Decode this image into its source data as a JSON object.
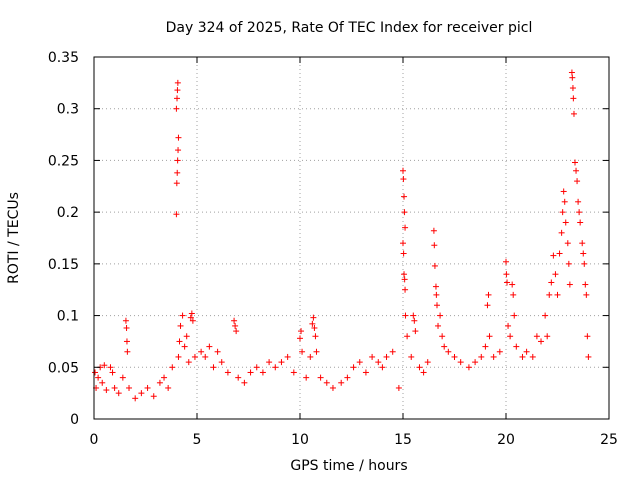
{
  "chart_data": {
    "type": "scatter",
    "title": "Day 324 of 2025, Rate Of TEC Index for receiver picl",
    "xlabel": "GPS time / hours",
    "ylabel": "ROTI / TECUs",
    "xlim": [
      0,
      25
    ],
    "ylim": [
      0,
      0.35
    ],
    "xticks": [
      0,
      5,
      10,
      15,
      20,
      25
    ],
    "xtick_labels": [
      "0",
      "5",
      "10",
      "15",
      "20",
      "25"
    ],
    "yticks": [
      0,
      0.05,
      0.1,
      0.15,
      0.2,
      0.25,
      0.3,
      0.35
    ],
    "ytick_labels": [
      "0",
      "0.05",
      "0.1",
      "0.15",
      "0.2",
      "0.25",
      "0.3",
      "0.35"
    ],
    "grid": true,
    "marker": "+",
    "color": "#ff0000",
    "series": [
      {
        "name": "ROTI",
        "points": [
          [
            0.05,
            0.045
          ],
          [
            0.1,
            0.03
          ],
          [
            0.2,
            0.04
          ],
          [
            0.3,
            0.05
          ],
          [
            0.4,
            0.035
          ],
          [
            0.5,
            0.052
          ],
          [
            0.6,
            0.028
          ],
          [
            0.8,
            0.05
          ],
          [
            0.9,
            0.045
          ],
          [
            1.0,
            0.03
          ],
          [
            1.2,
            0.025
          ],
          [
            1.4,
            0.04
          ],
          [
            1.55,
            0.095
          ],
          [
            1.58,
            0.088
          ],
          [
            1.6,
            0.075
          ],
          [
            1.62,
            0.065
          ],
          [
            1.7,
            0.03
          ],
          [
            2.0,
            0.02
          ],
          [
            2.3,
            0.025
          ],
          [
            2.6,
            0.03
          ],
          [
            2.9,
            0.022
          ],
          [
            3.2,
            0.035
          ],
          [
            3.4,
            0.04
          ],
          [
            3.6,
            0.03
          ],
          [
            3.8,
            0.05
          ],
          [
            4.0,
            0.198
          ],
          [
            4.02,
            0.228
          ],
          [
            4.04,
            0.238
          ],
          [
            4.06,
            0.25
          ],
          [
            4.08,
            0.26
          ],
          [
            4.1,
            0.272
          ],
          [
            4.0,
            0.3
          ],
          [
            4.03,
            0.31
          ],
          [
            4.05,
            0.318
          ],
          [
            4.07,
            0.325
          ],
          [
            4.1,
            0.06
          ],
          [
            4.15,
            0.075
          ],
          [
            4.2,
            0.09
          ],
          [
            4.3,
            0.1
          ],
          [
            4.4,
            0.07
          ],
          [
            4.5,
            0.08
          ],
          [
            4.6,
            0.055
          ],
          [
            4.7,
            0.098
          ],
          [
            4.75,
            0.102
          ],
          [
            4.8,
            0.095
          ],
          [
            4.9,
            0.06
          ],
          [
            5.2,
            0.065
          ],
          [
            5.4,
            0.06
          ],
          [
            5.6,
            0.07
          ],
          [
            5.8,
            0.05
          ],
          [
            6.0,
            0.065
          ],
          [
            6.2,
            0.055
          ],
          [
            6.5,
            0.045
          ],
          [
            6.8,
            0.095
          ],
          [
            6.85,
            0.09
          ],
          [
            6.9,
            0.085
          ],
          [
            7.0,
            0.04
          ],
          [
            7.3,
            0.035
          ],
          [
            7.6,
            0.045
          ],
          [
            7.9,
            0.05
          ],
          [
            8.2,
            0.045
          ],
          [
            8.5,
            0.055
          ],
          [
            8.8,
            0.05
          ],
          [
            9.1,
            0.055
          ],
          [
            9.4,
            0.06
          ],
          [
            9.7,
            0.045
          ],
          [
            10.0,
            0.078
          ],
          [
            10.05,
            0.085
          ],
          [
            10.1,
            0.065
          ],
          [
            10.3,
            0.04
          ],
          [
            10.5,
            0.06
          ],
          [
            10.6,
            0.092
          ],
          [
            10.65,
            0.098
          ],
          [
            10.7,
            0.088
          ],
          [
            10.75,
            0.08
          ],
          [
            10.8,
            0.065
          ],
          [
            11.0,
            0.04
          ],
          [
            11.3,
            0.035
          ],
          [
            11.6,
            0.03
          ],
          [
            12.0,
            0.035
          ],
          [
            12.3,
            0.04
          ],
          [
            12.6,
            0.05
          ],
          [
            12.9,
            0.055
          ],
          [
            13.2,
            0.045
          ],
          [
            13.5,
            0.06
          ],
          [
            13.8,
            0.055
          ],
          [
            14.0,
            0.05
          ],
          [
            14.2,
            0.06
          ],
          [
            14.5,
            0.065
          ],
          [
            14.8,
            0.03
          ],
          [
            15.0,
            0.24
          ],
          [
            15.02,
            0.232
          ],
          [
            15.05,
            0.215
          ],
          [
            15.07,
            0.2
          ],
          [
            15.1,
            0.185
          ],
          [
            15.0,
            0.17
          ],
          [
            15.03,
            0.16
          ],
          [
            15.05,
            0.14
          ],
          [
            15.08,
            0.135
          ],
          [
            15.1,
            0.125
          ],
          [
            15.12,
            0.1
          ],
          [
            15.2,
            0.08
          ],
          [
            15.4,
            0.06
          ],
          [
            15.5,
            0.1
          ],
          [
            15.55,
            0.095
          ],
          [
            15.6,
            0.085
          ],
          [
            15.8,
            0.05
          ],
          [
            16.0,
            0.045
          ],
          [
            16.2,
            0.055
          ],
          [
            16.5,
            0.182
          ],
          [
            16.52,
            0.168
          ],
          [
            16.55,
            0.148
          ],
          [
            16.6,
            0.128
          ],
          [
            16.62,
            0.12
          ],
          [
            16.65,
            0.11
          ],
          [
            16.7,
            0.09
          ],
          [
            16.8,
            0.1
          ],
          [
            16.9,
            0.08
          ],
          [
            17.0,
            0.07
          ],
          [
            17.2,
            0.065
          ],
          [
            17.5,
            0.06
          ],
          [
            17.8,
            0.055
          ],
          [
            18.2,
            0.05
          ],
          [
            18.5,
            0.055
          ],
          [
            18.8,
            0.06
          ],
          [
            19.0,
            0.07
          ],
          [
            19.1,
            0.11
          ],
          [
            19.15,
            0.12
          ],
          [
            19.2,
            0.08
          ],
          [
            19.4,
            0.06
          ],
          [
            19.7,
            0.065
          ],
          [
            20.0,
            0.152
          ],
          [
            20.02,
            0.14
          ],
          [
            20.05,
            0.132
          ],
          [
            20.1,
            0.09
          ],
          [
            20.2,
            0.08
          ],
          [
            20.3,
            0.13
          ],
          [
            20.35,
            0.12
          ],
          [
            20.4,
            0.1
          ],
          [
            20.5,
            0.07
          ],
          [
            20.8,
            0.06
          ],
          [
            21.0,
            0.065
          ],
          [
            21.3,
            0.06
          ],
          [
            21.5,
            0.08
          ],
          [
            21.7,
            0.075
          ],
          [
            21.9,
            0.1
          ],
          [
            22.0,
            0.08
          ],
          [
            22.1,
            0.12
          ],
          [
            22.2,
            0.132
          ],
          [
            22.3,
            0.158
          ],
          [
            22.4,
            0.14
          ],
          [
            22.5,
            0.12
          ],
          [
            22.6,
            0.16
          ],
          [
            22.7,
            0.18
          ],
          [
            22.75,
            0.2
          ],
          [
            22.8,
            0.22
          ],
          [
            22.85,
            0.21
          ],
          [
            22.9,
            0.19
          ],
          [
            23.0,
            0.17
          ],
          [
            23.05,
            0.15
          ],
          [
            23.1,
            0.13
          ],
          [
            23.2,
            0.335
          ],
          [
            23.22,
            0.33
          ],
          [
            23.25,
            0.32
          ],
          [
            23.27,
            0.31
          ],
          [
            23.3,
            0.295
          ],
          [
            23.35,
            0.248
          ],
          [
            23.4,
            0.24
          ],
          [
            23.45,
            0.23
          ],
          [
            23.5,
            0.21
          ],
          [
            23.55,
            0.2
          ],
          [
            23.6,
            0.19
          ],
          [
            23.7,
            0.17
          ],
          [
            23.75,
            0.16
          ],
          [
            23.8,
            0.15
          ],
          [
            23.85,
            0.13
          ],
          [
            23.9,
            0.12
          ],
          [
            23.95,
            0.08
          ],
          [
            24.0,
            0.06
          ]
        ]
      }
    ]
  }
}
